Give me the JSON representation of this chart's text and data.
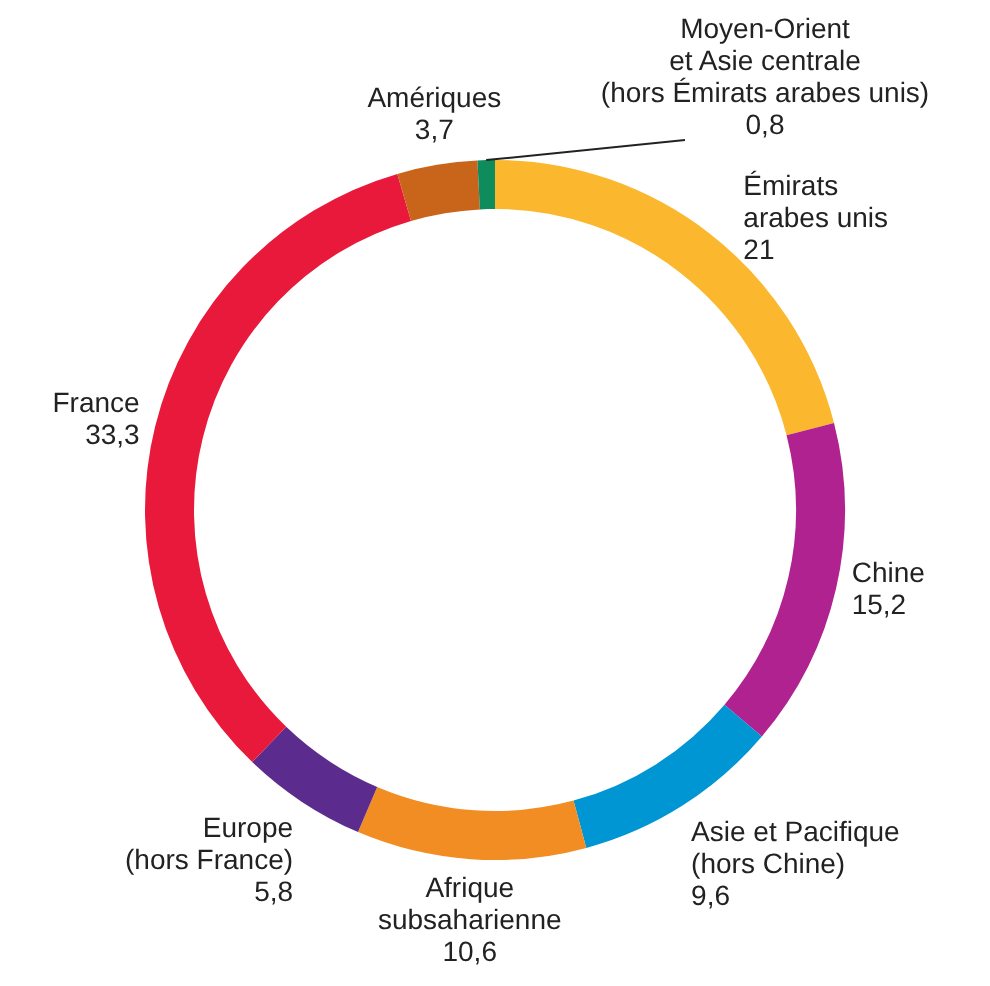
{
  "chart_data": {
    "type": "donut",
    "categories": [
      "Émirats\narabes unis",
      "Chine",
      "Asie et Pacifique\n(hors Chine)",
      "Afrique\nsubsaharienne",
      "Europe\n(hors France)",
      "France",
      "Amériques",
      "Moyen-Orient\net Asie centrale\n(hors Émirats arabes unis)"
    ],
    "values": [
      21,
      15.2,
      9.6,
      10.6,
      5.8,
      33.3,
      3.7,
      0.8
    ],
    "value_labels": [
      "21",
      "15,2",
      "9,6",
      "10,6",
      "5,8",
      "33,3",
      "3,7",
      "0,8"
    ],
    "colors": [
      "#fbb82f",
      "#b0228f",
      "#0095d3",
      "#f18d22",
      "#5b2c8e",
      "#e8193a",
      "#c8651b",
      "#0f8c5c"
    ]
  }
}
